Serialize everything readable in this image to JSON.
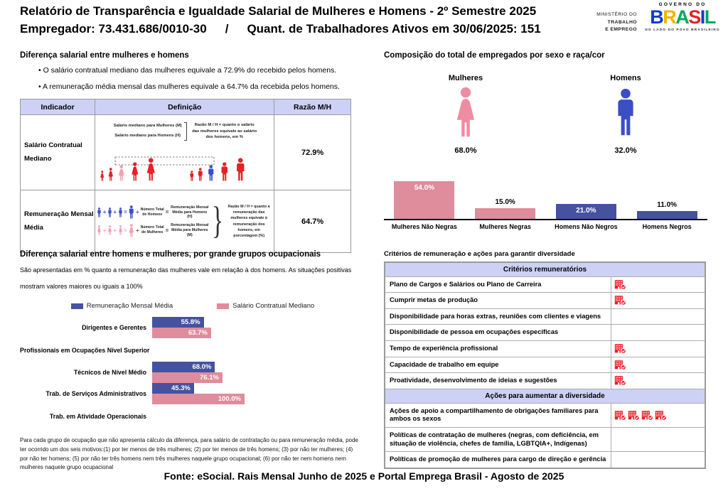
{
  "header": {
    "title": "Relatório de Transparência e Igualdade Salarial de Mulheres e Homens - 2º Semestre 2025",
    "employer": "Empregador: 73.431.686/0010-30",
    "separator": "/",
    "active_workers": "Quant. de Trabalhadores Ativos em 30/06/2025: 151",
    "ministry_lines": [
      "MINISTÉRIO DO",
      "TRABALHO",
      "E EMPREGO"
    ],
    "gov_logo": {
      "top": "GOVERNO DO",
      "brand_letters": [
        {
          "ch": "B",
          "color": "#0b3ccc"
        },
        {
          "ch": "R",
          "color": "#f0b400"
        },
        {
          "ch": "A",
          "color": "#00a859"
        },
        {
          "ch": "S",
          "color": "#e52322"
        },
        {
          "ch": "I",
          "color": "#0b3ccc"
        },
        {
          "ch": "L",
          "color": "#00a859"
        }
      ],
      "tagline": "DO LADO DO POVO BRASILEIRO"
    }
  },
  "colors": {
    "bar_pink": "#df8c9d",
    "bar_blue": "#46529f",
    "figure_pink": "#f2a0b4",
    "figure_blue": "#3c4ec4",
    "figure_red": "#e32126",
    "icon_pink": "#ee8ca2",
    "icon_blue": "#3c4ec4",
    "icon_red": "#ed1c24",
    "table_header_bg": "#ccd1f5"
  },
  "salary_diff": {
    "heading": "Diferença salarial entre mulheres e homens",
    "bullets": [
      "O salário contratual mediano das mulheres equivale a 72.9% do recebido pelos homens.",
      "A remuneração média mensal das mulheres equivale a 64.7% da recebida pelos homens."
    ],
    "table": {
      "headers": [
        "Indicador",
        "Definição",
        "Razão M/H"
      ],
      "row1": {
        "indicator": "Salário Contratual Mediano",
        "bracket_line1": "Salário mediano para Mulheres (M)",
        "bracket_line2": "Salário mediano para Homens (H)",
        "note": "Razão M / H = quanto o salário das mulheres equivale ao salário dos homens, em %",
        "ratio": "72.9%"
      },
      "row2": {
        "indicator": "Remuneração Mensal Média",
        "ops": {
          "plus": "+",
          "equals": "=",
          "divide": "÷"
        },
        "formulas": [
          {
            "sex": "men",
            "divisor": "Número Total de Homens",
            "result": "Remuneração Mensal Média para Homens (H)"
          },
          {
            "sex": "women",
            "divisor": "Número Total de Mulheres",
            "result": "Remuneração Mensal Média para Mulheres (M)"
          }
        ],
        "note": "Razão M / H = quanto a remuneração das mulheres equivale à remuneração dos homens, em porcentagem (%)",
        "ratio": "64.7%"
      }
    }
  },
  "composition": {
    "heading": "Composição do total de empregados por sexo e raça/cor",
    "women_label": "Mulheres",
    "women_pct": "68.0%",
    "men_label": "Homens",
    "men_pct": "32.0%",
    "chart_data": {
      "type": "bar",
      "categories": [
        "Mulheres Não Negras",
        "Mulheres Negras",
        "Homens Não Negros",
        "Homens Negros"
      ],
      "values": [
        54.0,
        15.0,
        21.0,
        11.0
      ],
      "unit": "%",
      "colors": [
        "#df8c9d",
        "#df8c9d",
        "#46529f",
        "#46529f"
      ],
      "ylim": [
        0,
        60
      ],
      "grid": false
    }
  },
  "occupational": {
    "heading": "Diferença salarial entre homens e mulheres, por grande grupos ocupacionais",
    "desc_line1": "São apresentadas em % quanto a remuneração das mulheres vale em relação à dos homens. As situações positivas",
    "desc_line2": "mostram valores maiores ou iguais a 100%",
    "chart_data": {
      "type": "bar-horizontal",
      "categories": [
        "Dirigentes e Gerentes",
        "Profissionais em Ocupações Nível Superior",
        "Técnicos de Nível Médio",
        "Trab. de Serviços Administrativos",
        "Trab. em Atividade Operacionais"
      ],
      "series": [
        {
          "name": "Remuneração Mensal Média",
          "color": "#46529f",
          "values": [
            55.8,
            null,
            68.0,
            45.3,
            null
          ]
        },
        {
          "name": "Salário Contratual Mediano",
          "color": "#df8c9d",
          "values": [
            63.7,
            null,
            76.1,
            100.0,
            null
          ]
        }
      ],
      "xlim": [
        0,
        100
      ],
      "legend_position": "top",
      "grid": false
    },
    "footnote": "Para cada grupo de ocupação que não apresenta cálculo da diferença, para salário de contratação ou para remuneração média, pode ter ocorrido um dos seis motivos:(1) por ter menos de três mulheres; (2) por ter menos de três homens; (3) por não ter mulheres; (4) por não ter homens; (5) por não ter três homens nem três mulheres naquele grupo ocupacional; (6) por não ter nem homens nem mulheres naquele grupo ocupacional"
  },
  "criteria": {
    "heading": "Critérios de remuneração e ações para garantir diversidade",
    "sections": [
      {
        "header": "Critérios remuneratórios",
        "rows": [
          {
            "label": "Plano de Cargos e Salários ou Plano de Carreira",
            "icons": 1
          },
          {
            "label": "Cumprir metas de produção",
            "icons": 1
          },
          {
            "label": "Disponibilidade para horas extras, reuniões com clientes e viagens",
            "icons": 0
          },
          {
            "label": "Disponibilidade de pessoa em ocupações específicas",
            "icons": 0
          },
          {
            "label": "Tempo de experiência profissional",
            "icons": 1
          },
          {
            "label": "Capacidade de trabalho em equipe",
            "icons": 1
          },
          {
            "label": "Proatividade, desenvolvimento de ideias e sugestões",
            "icons": 1
          }
        ]
      },
      {
        "header": "Ações para aumentar a diversidade",
        "rows": [
          {
            "label": "Ações de apoio a compartilhamento de obrigações familiares para ambos os sexos",
            "icons": 4
          },
          {
            "label": "Políticas de contratação de mulheres (negras, com deficiência, em situação de violência, chefes de família, LGBTQIA+, Indígenas)",
            "icons": 0
          },
          {
            "label": "Políticas de promoção de mulheres para cargo de direção e gerência",
            "icons": 0
          }
        ]
      }
    ]
  },
  "footer": "Fonte: eSocial. Rais Mensal Junho de 2025 e Portal Emprega Brasil - Agosto de 2025"
}
